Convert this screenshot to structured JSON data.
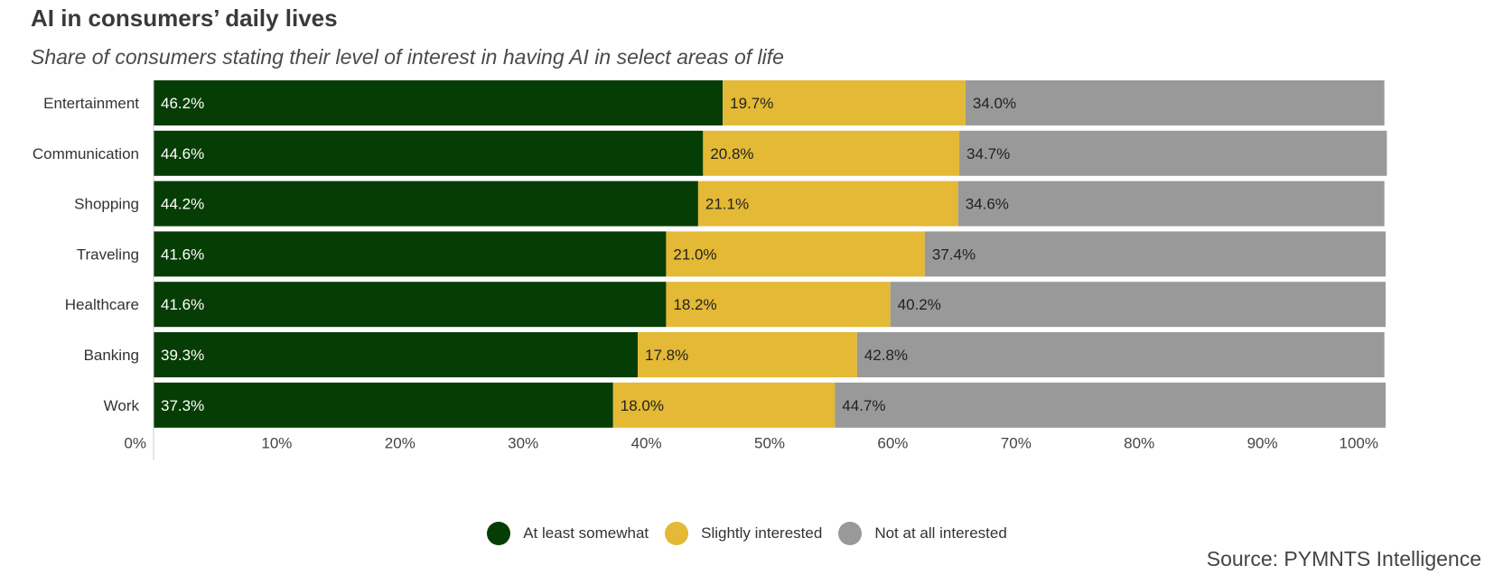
{
  "title": "AI in consumers’ daily lives",
  "subtitle": "Share of consumers stating their level of interest in having AI in select areas of life",
  "source": "Source: PYMNTS Intelligence",
  "colors": {
    "at_least_somewhat": "#063d04",
    "slightly_interested": "#e3b935",
    "not_at_all_interested": "#999999"
  },
  "legend": [
    {
      "label": "At least somewhat",
      "color": "#063d04"
    },
    {
      "label": "Slightly interested",
      "color": "#e3b935"
    },
    {
      "label": "Not at all interested",
      "color": "#999999"
    }
  ],
  "chart_data": {
    "type": "bar",
    "orientation": "horizontal",
    "stacked": true,
    "title": "AI in consumers’ daily lives",
    "subtitle": "Share of consumers stating their level of interest in having AI in select areas of life",
    "categories": [
      "Entertainment",
      "Communication",
      "Shopping",
      "Traveling",
      "Healthcare",
      "Banking",
      "Work"
    ],
    "series": [
      {
        "name": "At least somewhat",
        "values": [
          46.2,
          44.6,
          44.2,
          41.6,
          41.6,
          39.3,
          37.3
        ]
      },
      {
        "name": "Slightly interested",
        "values": [
          19.7,
          20.8,
          21.1,
          21.0,
          18.2,
          17.8,
          18.0
        ]
      },
      {
        "name": "Not at all interested",
        "values": [
          34.0,
          34.7,
          34.6,
          37.4,
          40.2,
          42.8,
          44.7
        ]
      }
    ],
    "value_labels": [
      [
        "46.2%",
        "44.6%",
        "44.2%",
        "41.6%",
        "41.6%",
        "39.3%",
        "37.3%"
      ],
      [
        "19.7%",
        "20.8%",
        "21.1%",
        "21.0%",
        "18.2%",
        "17.8%",
        "18.0%"
      ],
      [
        "34.0%",
        "34.7%",
        "34.6%",
        "37.4%",
        "40.2%",
        "42.8%",
        "44.7%"
      ]
    ],
    "xlim": [
      0,
      100
    ],
    "xticks": [
      "0%",
      "10%",
      "20%",
      "30%",
      "40%",
      "50%",
      "60%",
      "70%",
      "80%",
      "90%",
      "100%"
    ],
    "grid": false,
    "legend_position": "bottom"
  }
}
